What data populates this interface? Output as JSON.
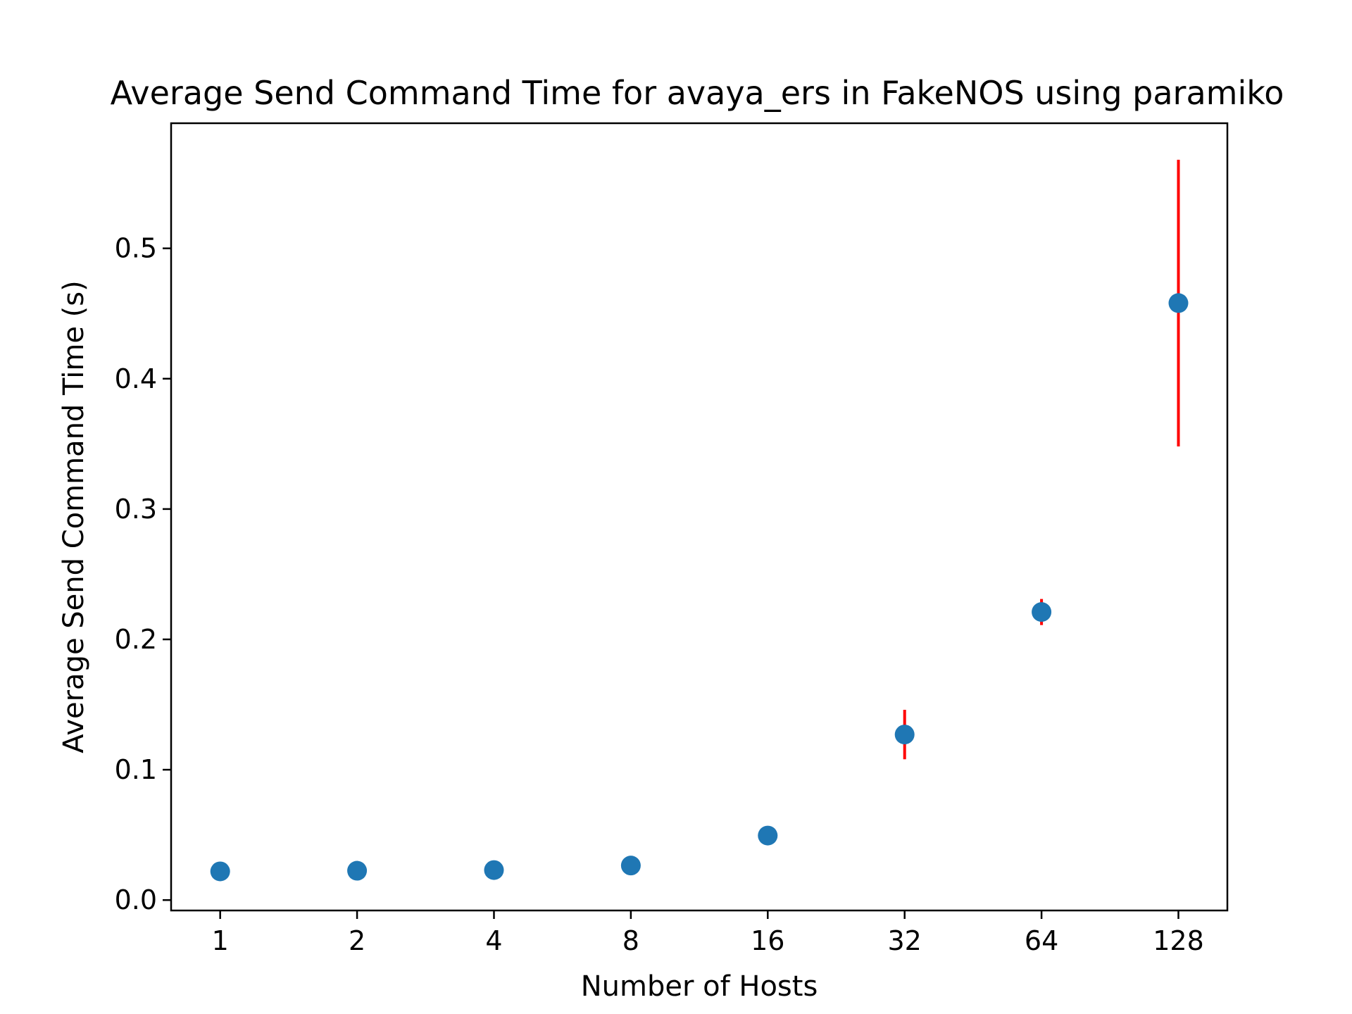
{
  "chart_data": {
    "type": "scatter",
    "title": "Average Send Command Time for avaya_ers in FakeNOS using paramiko",
    "xlabel": "Number of Hosts",
    "ylabel": "Average Send Command Time (s)",
    "x_scale": "log2",
    "x_ticks": [
      "1",
      "2",
      "4",
      "8",
      "16",
      "32",
      "64",
      "128"
    ],
    "y_ticks": [
      "0.0",
      "0.1",
      "0.2",
      "0.3",
      "0.4",
      "0.5"
    ],
    "xlim": [
      0.78,
      164
    ],
    "ylim": [
      -0.008,
      0.596
    ],
    "grid": false,
    "series": [
      {
        "marker_color": "#1f77b4",
        "errorbar_color": "#ff0000",
        "x": [
          1,
          2,
          4,
          8,
          16,
          32,
          64,
          128
        ],
        "y": [
          0.022,
          0.0225,
          0.023,
          0.0265,
          0.0495,
          0.127,
          0.221,
          0.458
        ],
        "yerr": [
          0,
          0,
          0,
          0,
          0,
          0.019,
          0.01,
          0.11
        ]
      }
    ]
  }
}
